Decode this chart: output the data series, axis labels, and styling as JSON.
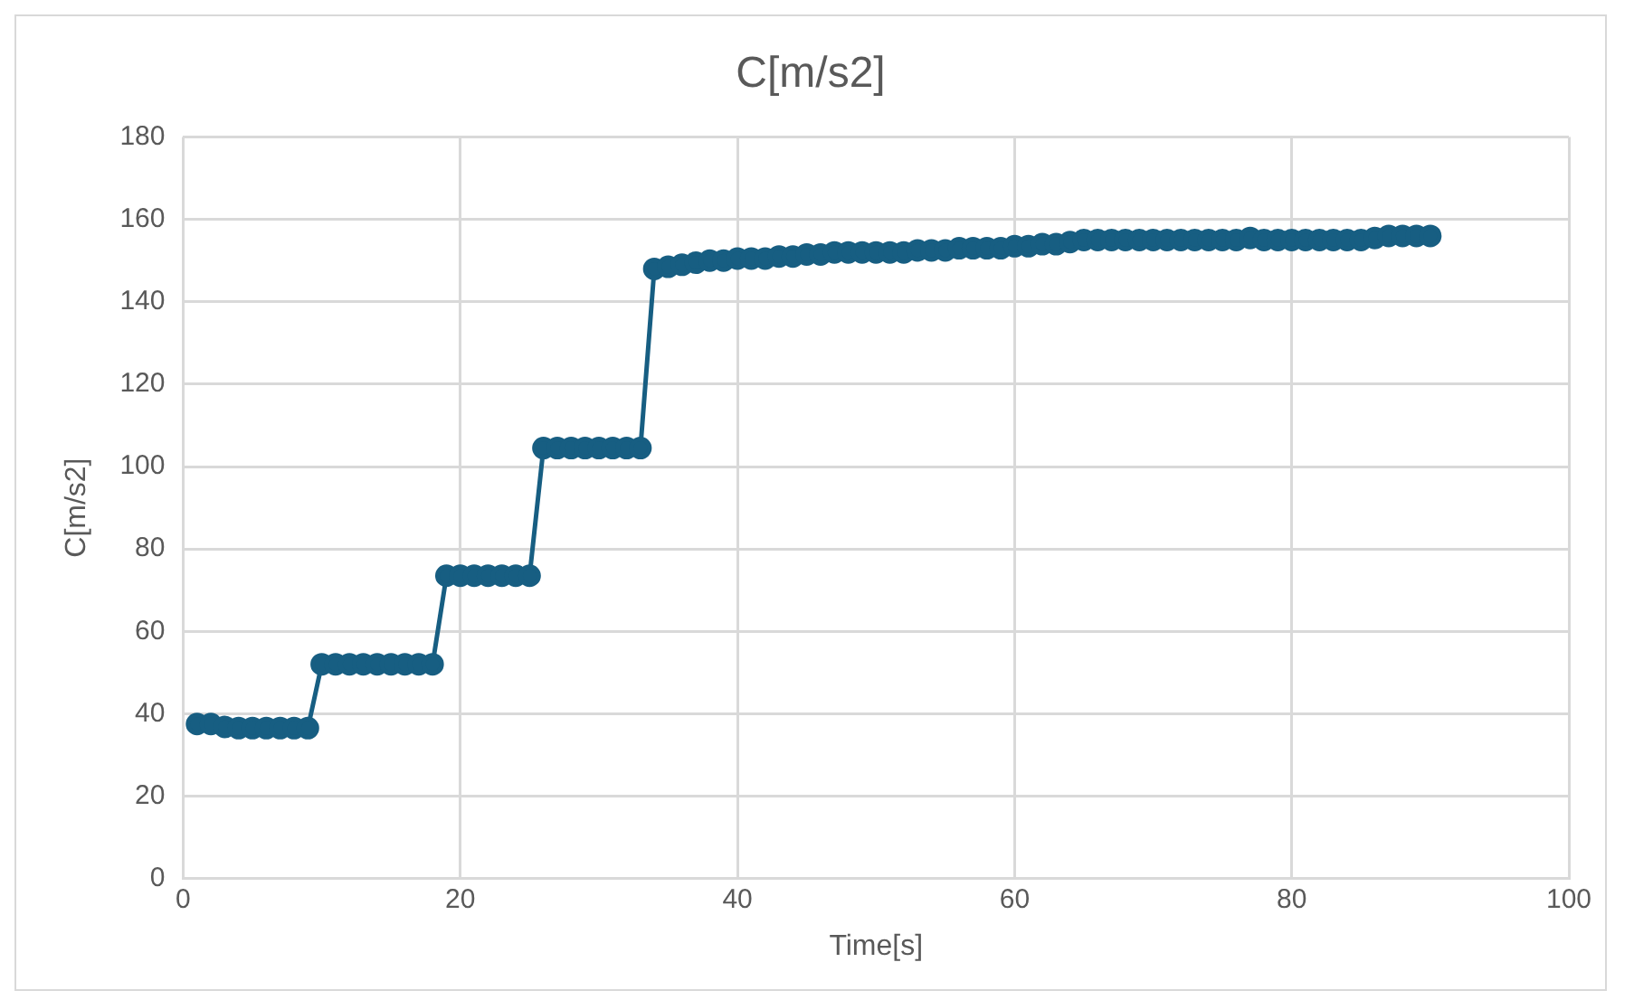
{
  "chart_data": {
    "type": "line",
    "title": "C[m/s2]",
    "xlabel": "Time[s]",
    "ylabel": "C[m/s2]",
    "x": [
      1,
      2,
      3,
      4,
      5,
      6,
      7,
      8,
      9,
      10,
      11,
      12,
      13,
      14,
      15,
      16,
      17,
      18,
      19,
      20,
      21,
      22,
      23,
      24,
      25,
      26,
      27,
      28,
      29,
      30,
      31,
      32,
      33,
      34,
      35,
      36,
      37,
      38,
      39,
      40,
      41,
      42,
      43,
      44,
      45,
      46,
      47,
      48,
      49,
      50,
      51,
      52,
      53,
      54,
      55,
      56,
      57,
      58,
      59,
      60,
      61,
      62,
      63,
      64,
      65,
      66,
      67,
      68,
      69,
      70,
      71,
      72,
      73,
      74,
      75,
      76,
      77,
      78,
      79,
      80,
      81,
      82,
      83,
      84,
      85,
      86,
      87,
      88,
      89,
      90
    ],
    "series": [
      {
        "color": "#175e82",
        "values": [
          37.5,
          37.5,
          36.8,
          36.5,
          36.5,
          36.5,
          36.5,
          36.5,
          36.5,
          52,
          52,
          52,
          52,
          52,
          52,
          52,
          52,
          52,
          73.5,
          73.5,
          73.5,
          73.5,
          73.5,
          73.5,
          73.5,
          104.5,
          104.5,
          104.5,
          104.5,
          104.5,
          104.5,
          104.5,
          104.5,
          148,
          148.5,
          149,
          149.5,
          150,
          150,
          150.5,
          150.5,
          150.5,
          151,
          151,
          151.5,
          151.5,
          152,
          152,
          152,
          152,
          152,
          152,
          152.5,
          152.5,
          152.5,
          153,
          153,
          153,
          153,
          153.5,
          153.5,
          154,
          154,
          154.5,
          155,
          155,
          155,
          155,
          155,
          155,
          155,
          155,
          155,
          155,
          155,
          155,
          155.5,
          155,
          155,
          155,
          155,
          155,
          155,
          155,
          155,
          155.5,
          156,
          156,
          156,
          156
        ]
      }
    ],
    "xlim": [
      0,
      100
    ],
    "xticks": [
      0,
      20,
      40,
      60,
      80,
      100
    ],
    "ylim": [
      0,
      180
    ],
    "yticks": [
      0,
      20,
      40,
      60,
      80,
      100,
      120,
      140,
      160,
      180
    ],
    "grid": true,
    "marker": "circle",
    "line_style": "solid",
    "legend": false
  }
}
